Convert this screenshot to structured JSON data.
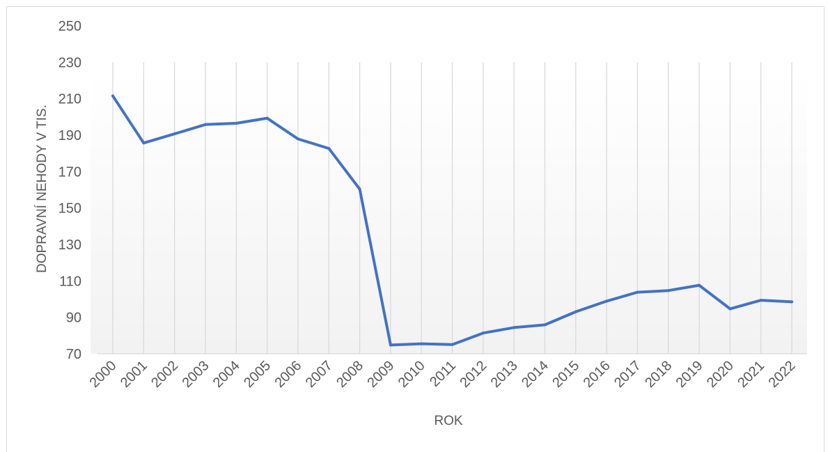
{
  "chart_data": {
    "type": "line",
    "title": "",
    "xlabel": "ROK",
    "ylabel": "DOPRAVNÍ NEHODY V TIS.",
    "ylim": [
      70,
      250
    ],
    "yticks": [
      70,
      90,
      110,
      130,
      150,
      170,
      190,
      210,
      230,
      250
    ],
    "categories": [
      "2000",
      "2001",
      "2002",
      "2003",
      "2004",
      "2005",
      "2006",
      "2007",
      "2008",
      "2009",
      "2010",
      "2011",
      "2012",
      "2013",
      "2014",
      "2015",
      "2016",
      "2017",
      "2018",
      "2019",
      "2020",
      "2021",
      "2022"
    ],
    "series": [
      {
        "values": [
          211.5,
          185.7,
          190.7,
          195.8,
          196.5,
          199.3,
          187.9,
          182.7,
          160.4,
          74.8,
          75.5,
          75.1,
          81.4,
          84.4,
          85.9,
          93.1,
          98.9,
          103.8,
          104.7,
          107.6,
          94.7,
          99.4,
          98.5
        ],
        "color": "#4472c4"
      }
    ],
    "grid": "vertical",
    "background_gradient": [
      "#ffffff",
      "#f2f2f2"
    ]
  }
}
